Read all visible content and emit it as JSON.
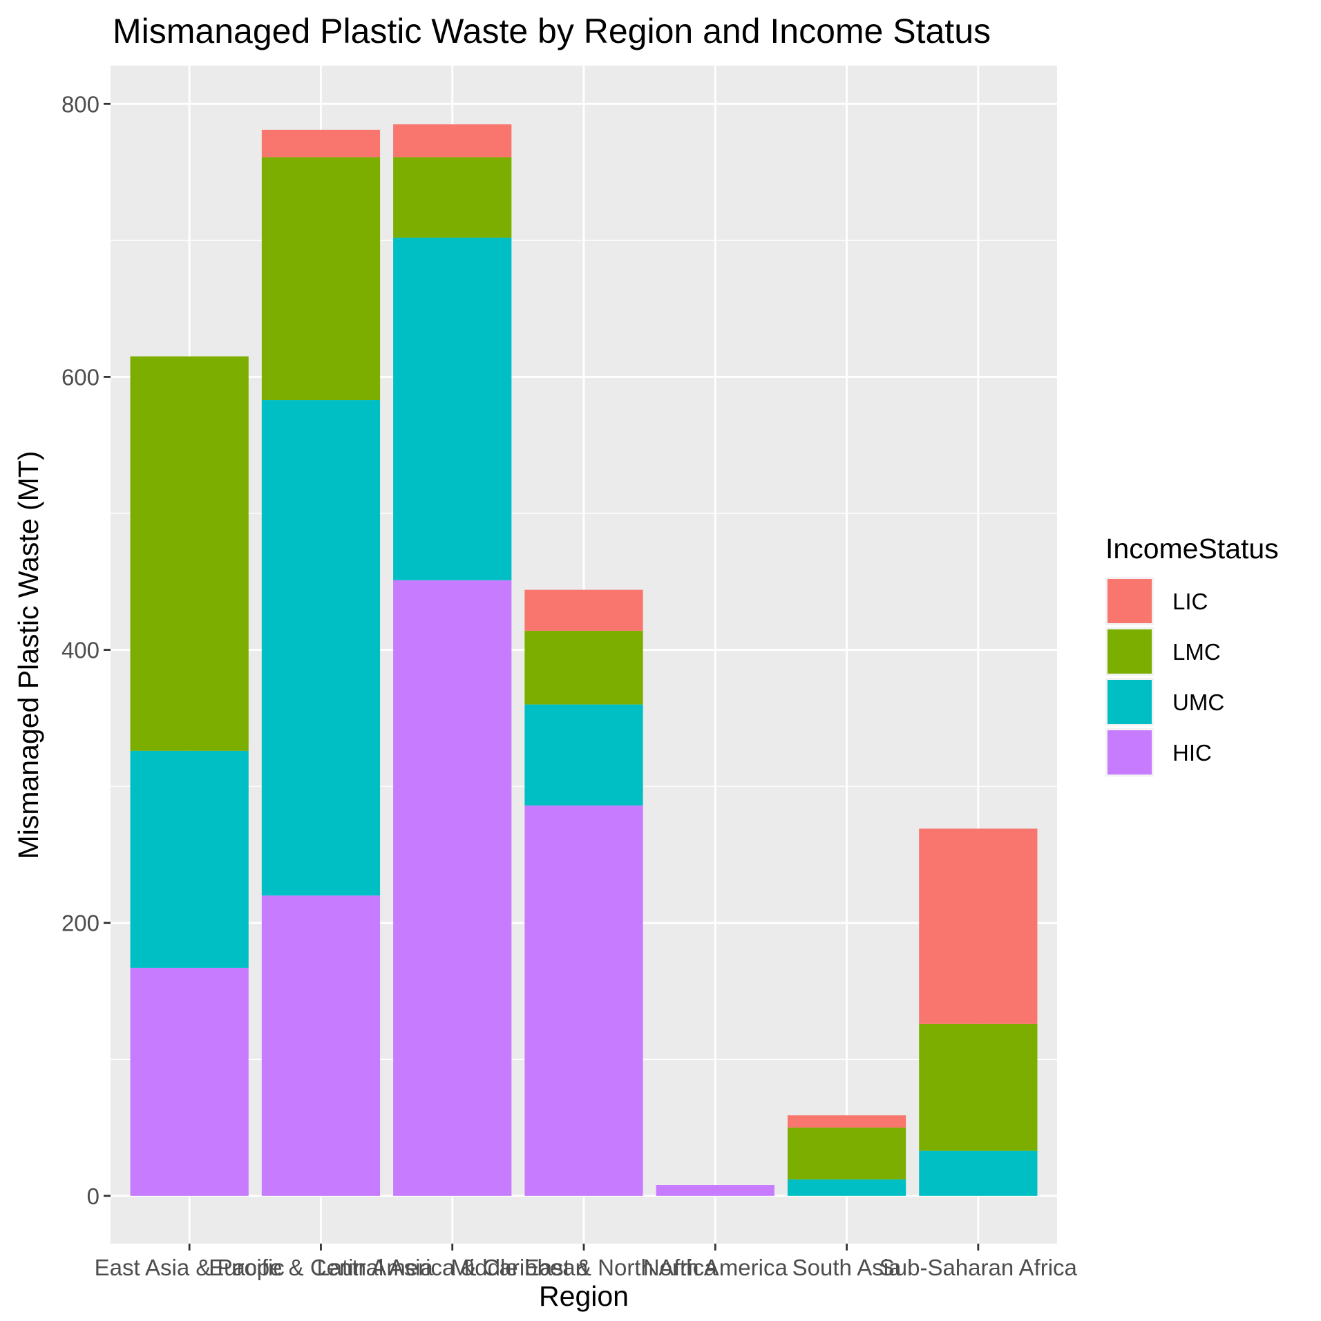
{
  "chart_data": {
    "type": "bar",
    "stacked": true,
    "title": "Mismanaged Plastic Waste by Region and Income Status",
    "xlabel": "Region",
    "ylabel": "Mismanaged Plastic Waste (MT)",
    "ylim": [
      -35,
      828
    ],
    "yticks": [
      0,
      200,
      400,
      600,
      800
    ],
    "grid": true,
    "legend_position": "right",
    "legend_title": "IncomeStatus",
    "categories": [
      "East Asia & Pacific",
      "Europe & Central Asia",
      "Latin America & Caribbean",
      "Middle East & North Africa",
      "North America",
      "South Asia",
      "Sub-Saharan Africa"
    ],
    "series": [
      {
        "name": "HIC",
        "color": "#C77CFF",
        "values": [
          167,
          220,
          451,
          286,
          8,
          0,
          0
        ]
      },
      {
        "name": "UMC",
        "color": "#00BFC4",
        "values": [
          159,
          363,
          251,
          74,
          0,
          12,
          33
        ]
      },
      {
        "name": "LMC",
        "color": "#7CAE00",
        "values": [
          289,
          178,
          59,
          54,
          0,
          38,
          93
        ]
      },
      {
        "name": "LIC",
        "color": "#F8766D",
        "values": [
          0,
          20,
          24,
          30,
          0,
          9,
          143
        ]
      }
    ],
    "legend_order": [
      "LIC",
      "LMC",
      "UMC",
      "HIC"
    ]
  }
}
